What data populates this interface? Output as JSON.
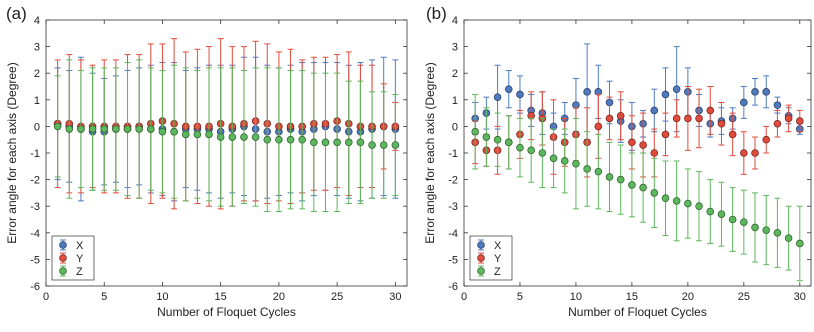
{
  "chart_data": [
    {
      "type": "scatter",
      "panel_label": "(a)",
      "xlabel": "Number of Floquet Cycles",
      "ylabel": "Error angle for each axis (Degree)",
      "xlim": [
        0,
        31
      ],
      "ylim": [
        -6,
        4
      ],
      "xticks": [
        0,
        5,
        10,
        15,
        20,
        25,
        30
      ],
      "yticks": [
        -6,
        -5,
        -4,
        -3,
        -2,
        -1,
        0,
        1,
        2,
        3,
        4
      ],
      "grid": false,
      "legend_position": "bottom-left",
      "error_bars": true,
      "x": [
        1,
        2,
        3,
        4,
        5,
        6,
        7,
        8,
        9,
        10,
        11,
        12,
        13,
        14,
        15,
        16,
        17,
        18,
        19,
        20,
        21,
        22,
        23,
        24,
        25,
        26,
        27,
        28,
        29,
        30
      ],
      "series": [
        {
          "name": "X",
          "color": "#4f7ac0",
          "values": [
            0.1,
            0.0,
            -0.1,
            -0.2,
            -0.2,
            -0.1,
            -0.1,
            0.0,
            -0.1,
            -0.1,
            -0.2,
            -0.1,
            -0.1,
            -0.1,
            -0.2,
            -0.1,
            0.0,
            -0.1,
            -0.2,
            -0.2,
            -0.1,
            -0.2,
            -0.1,
            0.0,
            -0.1,
            -0.2,
            -0.2,
            -0.1,
            0.0,
            -0.1
          ],
          "errors": [
            2.1,
            2.1,
            2.7,
            2.2,
            2.0,
            2.0,
            2.2,
            2.2,
            2.4,
            2.5,
            2.6,
            2.2,
            2.3,
            2.4,
            2.5,
            2.4,
            2.6,
            2.7,
            2.5,
            2.4,
            2.4,
            2.6,
            2.5,
            2.4,
            2.5,
            2.5,
            2.6,
            2.6,
            2.6,
            2.6
          ]
        },
        {
          "name": "Y",
          "color": "#e04b3c",
          "values": [
            0.1,
            0.1,
            0.0,
            0.0,
            0.0,
            0.0,
            0.0,
            0.0,
            0.1,
            0.2,
            0.1,
            0.0,
            0.0,
            0.0,
            0.1,
            0.0,
            0.1,
            0.2,
            0.1,
            0.0,
            0.0,
            0.0,
            0.1,
            0.1,
            0.2,
            0.1,
            0.0,
            0.0,
            0.0,
            0.0
          ],
          "errors": [
            2.4,
            2.6,
            2.5,
            2.3,
            2.5,
            2.5,
            2.7,
            2.7,
            3.0,
            2.9,
            3.2,
            2.8,
            2.9,
            3.0,
            3.2,
            3.0,
            2.9,
            3.0,
            3.0,
            2.8,
            2.9,
            2.5,
            2.5,
            2.5,
            2.5,
            2.7,
            2.3,
            2.3,
            1.6,
            0.9
          ]
        },
        {
          "name": "Z",
          "color": "#5cb85c",
          "values": [
            0.0,
            -0.1,
            -0.1,
            -0.1,
            -0.1,
            -0.1,
            -0.1,
            -0.1,
            -0.1,
            -0.2,
            -0.2,
            -0.3,
            -0.3,
            -0.3,
            -0.4,
            -0.4,
            -0.4,
            -0.4,
            -0.5,
            -0.5,
            -0.5,
            -0.5,
            -0.6,
            -0.6,
            -0.6,
            -0.6,
            -0.6,
            -0.7,
            -0.7,
            -0.7
          ],
          "errors": [
            1.9,
            2.6,
            2.2,
            2.3,
            2.3,
            2.3,
            2.5,
            2.6,
            2.3,
            2.3,
            2.5,
            2.5,
            2.4,
            2.5,
            2.6,
            2.6,
            2.5,
            2.6,
            2.7,
            2.7,
            2.6,
            2.6,
            2.6,
            2.6,
            2.6,
            2.3,
            2.3,
            2.0,
            2.0,
            1.9
          ]
        }
      ]
    },
    {
      "type": "scatter",
      "panel_label": "(b)",
      "xlabel": "Number of Floquet Cycles",
      "ylabel": "Error angle for each axis (Degree)",
      "xlim": [
        0,
        31
      ],
      "ylim": [
        -6,
        4
      ],
      "xticks": [
        0,
        5,
        10,
        15,
        20,
        25,
        30
      ],
      "yticks": [
        -6,
        -5,
        -4,
        -3,
        -2,
        -1,
        0,
        1,
        2,
        3,
        4
      ],
      "grid": false,
      "legend_position": "bottom-left",
      "error_bars": true,
      "x": [
        1,
        2,
        3,
        4,
        5,
        6,
        7,
        8,
        9,
        10,
        11,
        12,
        13,
        14,
        15,
        16,
        17,
        18,
        19,
        20,
        21,
        22,
        23,
        24,
        25,
        26,
        27,
        28,
        29,
        30
      ],
      "series": [
        {
          "name": "X",
          "color": "#4f7ac0",
          "values": [
            0.3,
            0.5,
            1.1,
            1.4,
            1.2,
            0.6,
            0.5,
            0.0,
            0.3,
            0.8,
            1.3,
            1.3,
            0.9,
            0.2,
            0.0,
            0.1,
            0.6,
            1.2,
            1.4,
            1.3,
            0.6,
            0.1,
            0.2,
            0.3,
            0.9,
            1.3,
            1.3,
            0.8,
            0.4,
            -0.1
          ],
          "errors": [
            0.6,
            0.6,
            1.2,
            0.7,
            0.7,
            0.6,
            0.8,
            0.5,
            0.6,
            1.0,
            1.8,
            1.0,
            0.8,
            0.8,
            0.9,
            0.5,
            0.8,
            1.0,
            1.6,
            0.9,
            0.6,
            0.5,
            0.5,
            0.4,
            0.6,
            0.5,
            0.6,
            0.3,
            0.3,
            0.2
          ]
        },
        {
          "name": "Y",
          "color": "#e04b3c",
          "values": [
            -0.6,
            -0.9,
            -0.9,
            -0.6,
            -0.3,
            0.4,
            0.3,
            -0.4,
            -0.6,
            -0.3,
            -0.6,
            0.0,
            0.3,
            0.4,
            -0.6,
            -0.7,
            -1.0,
            -0.3,
            0.3,
            0.3,
            0.3,
            0.6,
            0.1,
            -0.3,
            -1.0,
            -1.0,
            -0.5,
            0.1,
            0.3,
            0.2
          ],
          "errors": [
            0.8,
            0.6,
            0.9,
            1.0,
            0.9,
            0.9,
            1.0,
            1.4,
            0.9,
            1.0,
            1.3,
            1.2,
            0.8,
            0.9,
            1.0,
            1.2,
            0.9,
            0.8,
            0.7,
            1.2,
            1.1,
            0.9,
            0.8,
            0.8,
            0.8,
            0.6,
            0.5,
            0.5,
            0.5,
            0.4
          ]
        },
        {
          "name": "Z",
          "color": "#5cb85c",
          "values": [
            -0.2,
            -0.4,
            -0.5,
            -0.6,
            -0.8,
            -0.9,
            -1.0,
            -1.2,
            -1.3,
            -1.4,
            -1.6,
            -1.7,
            -1.9,
            -2.0,
            -2.2,
            -2.3,
            -2.5,
            -2.7,
            -2.8,
            -2.9,
            -3.0,
            -3.2,
            -3.3,
            -3.5,
            -3.6,
            -3.8,
            -3.9,
            -4.0,
            -4.2,
            -4.4
          ],
          "errors": [
            1.4,
            1.1,
            1.0,
            1.0,
            1.1,
            1.2,
            1.3,
            1.1,
            1.2,
            1.7,
            1.4,
            1.4,
            1.3,
            1.3,
            1.2,
            1.3,
            1.3,
            1.4,
            1.5,
            1.3,
            1.3,
            1.2,
            1.2,
            1.2,
            1.2,
            1.3,
            1.3,
            1.3,
            1.2,
            1.4
          ]
        }
      ]
    }
  ]
}
